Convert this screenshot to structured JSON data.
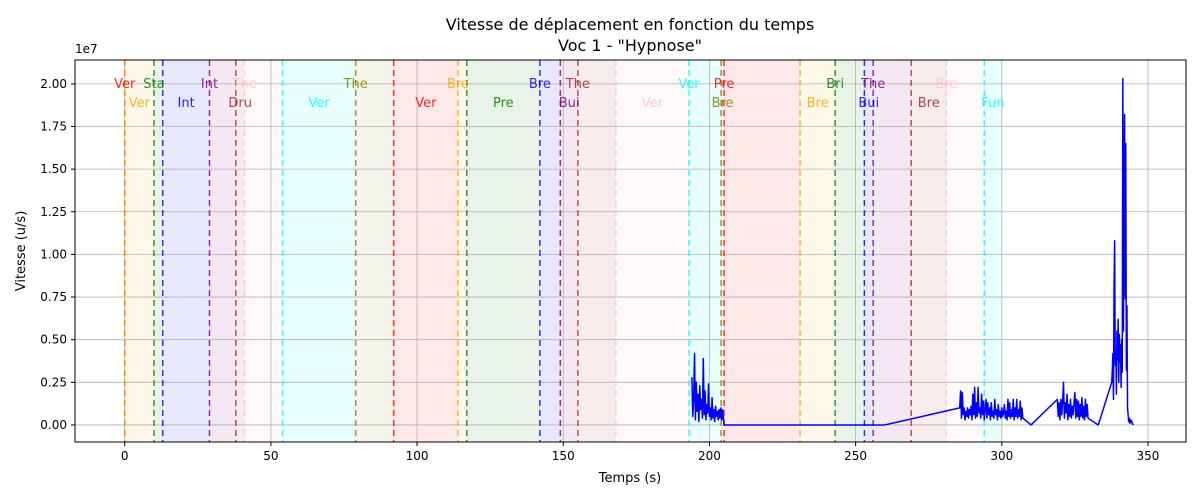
{
  "chart_data": {
    "type": "line",
    "title": "Vitesse de déplacement en fonction du temps",
    "subtitle": "Voc 1 - \"Hypnose\"",
    "xlabel": "Temps (s)",
    "ylabel": "Vitesse (u/s)",
    "y_multiplier": "1e7",
    "xlim": [
      -17,
      363
    ],
    "ylim": [
      -1000000,
      21400000
    ],
    "x_ticks": [
      0,
      50,
      100,
      150,
      200,
      250,
      300,
      350
    ],
    "y_ticks": [
      0,
      2500000,
      5000000,
      7500000,
      10000000,
      12500000,
      15000000,
      17500000,
      20000000
    ],
    "y_tick_labels": [
      "0.00",
      "0.25",
      "0.50",
      "0.75",
      "1.00",
      "1.25",
      "1.50",
      "1.75",
      "2.00"
    ],
    "grid": true,
    "segments": [
      {
        "label": "Ver",
        "start": 0,
        "end": 0,
        "row": 0,
        "color": "#ff0000"
      },
      {
        "label": "Ver",
        "start": 0,
        "end": 10,
        "row": 1,
        "color": "#ffa500"
      },
      {
        "label": "Sta",
        "start": 10,
        "end": 13,
        "row": 0,
        "color": "#008000"
      },
      {
        "label": "Int",
        "start": 13,
        "end": 29,
        "row": 1,
        "color": "#0000ff"
      },
      {
        "label": "Int",
        "start": 29,
        "end": 38,
        "row": 0,
        "color": "#800080"
      },
      {
        "label": "Dru",
        "start": 38,
        "end": 41,
        "row": 1,
        "color": "#a52a2a"
      },
      {
        "label": "The",
        "start": 41,
        "end": 54,
        "row": 0,
        "color": "#ffc0cb"
      },
      {
        "label": "Ver",
        "start": 54,
        "end": 79,
        "row": 1,
        "color": "#00ffff"
      },
      {
        "label": "The",
        "start": 79,
        "end": 92,
        "row": 0,
        "color": "#808000"
      },
      {
        "label": "Ver",
        "start": 92,
        "end": 114,
        "row": 1,
        "color": "#ff0000"
      },
      {
        "label": "Bre",
        "start": 114,
        "end": 117,
        "row": 0,
        "color": "#ffa500"
      },
      {
        "label": "Pre",
        "start": 117,
        "end": 142,
        "row": 1,
        "color": "#008000"
      },
      {
        "label": "Bre",
        "start": 142,
        "end": 149,
        "row": 0,
        "color": "#0000ff"
      },
      {
        "label": "Bui",
        "start": 149,
        "end": 155,
        "row": 1,
        "color": "#800080"
      },
      {
        "label": "The",
        "start": 155,
        "end": 168,
        "row": 0,
        "color": "#a52a2a"
      },
      {
        "label": "Ver",
        "start": 168,
        "end": 193,
        "row": 1,
        "color": "#ffc0cb"
      },
      {
        "label": "Ver",
        "start": 193,
        "end": 204,
        "row": 0,
        "color": "#00ffff"
      },
      {
        "label": "Bre",
        "start": 204,
        "end": 205,
        "row": 1,
        "color": "#808000"
      },
      {
        "label": "Pre",
        "start": 205,
        "end": 231,
        "row": 0,
        "color": "#ff0000"
      },
      {
        "label": "Bre",
        "start": 231,
        "end": 243,
        "row": 1,
        "color": "#ffa500"
      },
      {
        "label": "Bri",
        "start": 243,
        "end": 253,
        "row": 0,
        "color": "#008000"
      },
      {
        "label": "Bui",
        "start": 253,
        "end": 256,
        "row": 1,
        "color": "#0000ff"
      },
      {
        "label": "The",
        "start": 256,
        "end": 269,
        "row": 0,
        "color": "#800080"
      },
      {
        "label": "Bre",
        "start": 269,
        "end": 281,
        "row": 1,
        "color": "#a52a2a"
      },
      {
        "label": "Bre",
        "start": 281,
        "end": 294,
        "row": 0,
        "color": "#ffc0cb"
      },
      {
        "label": "Fun",
        "start": 294,
        "end": 300,
        "row": 1,
        "color": "#00ffff"
      }
    ],
    "series": [
      {
        "color": "#0000ff",
        "x": [
          194.0,
          194.3,
          194.6,
          194.9,
          195.2,
          195.5,
          195.8,
          196.1,
          196.4,
          196.7,
          197.0,
          197.3,
          197.6,
          197.9,
          198.2,
          198.5,
          198.8,
          199.1,
          199.4,
          199.7,
          200.0,
          200.3,
          200.6,
          200.9,
          201.2,
          201.5,
          201.8,
          202.1,
          202.4,
          202.7,
          203.0,
          203.3,
          203.6,
          203.9,
          204.2,
          204.5,
          205,
          230,
          260,
          285.6,
          285.9,
          286.2,
          286.5,
          286.8,
          287.1,
          287.4,
          287.7,
          288.0,
          288.3,
          288.6,
          288.9,
          289.2,
          289.5,
          289.8,
          290.1,
          290.4,
          290.7,
          291.0,
          291.3,
          291.6,
          291.9,
          292.2,
          292.5,
          292.8,
          293.1,
          293.4,
          293.7,
          294.0,
          294.3,
          294.6,
          294.9,
          295.2,
          295.5,
          295.8,
          296.1,
          296.4,
          296.7,
          297.0,
          297.3,
          297.6,
          297.9,
          298.2,
          298.5,
          298.8,
          299.1,
          299.4,
          299.7,
          300.0,
          300.3,
          300.6,
          300.9,
          301.2,
          301.5,
          301.8,
          302.1,
          302.4,
          302.7,
          303.0,
          303.3,
          303.6,
          303.9,
          304.2,
          304.5,
          304.8,
          305.1,
          305.4,
          305.7,
          306.0,
          306.3,
          306.6,
          306.9,
          307.2,
          310,
          319.0,
          319.3,
          319.6,
          319.9,
          320.2,
          320.5,
          320.8,
          321.1,
          321.4,
          321.7,
          322.0,
          322.3,
          322.6,
          322.9,
          323.2,
          323.5,
          323.8,
          324.1,
          324.4,
          324.7,
          325.0,
          325.3,
          325.6,
          325.9,
          326.2,
          326.5,
          326.8,
          327.1,
          327.4,
          327.7,
          328.0,
          328.3,
          328.6,
          328.9,
          329.2,
          329.5,
          333,
          337.6,
          337.8,
          338.0,
          338.2,
          338.4,
          338.6,
          338.8,
          339.0,
          339.2,
          339.4,
          339.6,
          339.8,
          340.0,
          340.2,
          340.4,
          340.6,
          340.8,
          341.0,
          341.2,
          341.4,
          341.6,
          341.8,
          342.0,
          342.2,
          342.4,
          342.6,
          342.8,
          343.0,
          343.2,
          343.4,
          343.6,
          343.8,
          344.0,
          344.2,
          344.4,
          344.6,
          344.8,
          345.0
        ],
        "y": [
          2800000,
          500000,
          1500000,
          4200000,
          300000,
          2500000,
          800000,
          1800000,
          200000,
          2300000,
          900000,
          1500000,
          400000,
          3900000,
          600000,
          2000000,
          300000,
          1200000,
          700000,
          2400000,
          500000,
          1000000,
          300000,
          1600000,
          400000,
          900000,
          200000,
          1100000,
          500000,
          800000,
          300000,
          900000,
          400000,
          1000000,
          300000,
          900000,
          0,
          0,
          0,
          1000000,
          2000000,
          400000,
          1900000,
          600000,
          1000000,
          300000,
          800000,
          500000,
          1000000,
          400000,
          900000,
          600000,
          1100000,
          300000,
          1800000,
          600000,
          2200000,
          400000,
          1300000,
          500000,
          2200000,
          700000,
          1000000,
          400000,
          1800000,
          600000,
          1400000,
          300000,
          900000,
          1500000,
          400000,
          1300000,
          600000,
          1000000,
          300000,
          1300000,
          500000,
          800000,
          400000,
          1500000,
          600000,
          900000,
          300000,
          1200000,
          500000,
          800000,
          400000,
          1000000,
          500000,
          700000,
          1200000,
          400000,
          800000,
          300000,
          1500000,
          500000,
          1300000,
          400000,
          900000,
          500000,
          1500000,
          300000,
          1000000,
          500000,
          1500000,
          400000,
          900000,
          500000,
          1400000,
          300000,
          1000000,
          400000,
          0,
          1500000,
          500000,
          1300000,
          300000,
          1500000,
          600000,
          1400000,
          2500000,
          400000,
          1300000,
          700000,
          1800000,
          300000,
          1200000,
          500000,
          1500000,
          400000,
          1100000,
          600000,
          1300000,
          1900000,
          400000,
          1500000,
          500000,
          1400000,
          300000,
          1200000,
          500000,
          1600000,
          400000,
          1100000,
          300000,
          1500000,
          500000,
          1200000,
          400000,
          0,
          2500000,
          3200000,
          4200000,
          1500000,
          8100000,
          10800000,
          3500000,
          4300000,
          1800000,
          5500000,
          3800000,
          6200000,
          2500000,
          5300000,
          3700000,
          4700000,
          2200000,
          5000000,
          3100000,
          20300000,
          5500000,
          11600000,
          18200000,
          7400000,
          16500000,
          3200000,
          7000000,
          1000000,
          600000,
          200000,
          400000,
          100000,
          300000,
          150000,
          250000,
          100000,
          50000,
          0
        ]
      }
    ]
  }
}
